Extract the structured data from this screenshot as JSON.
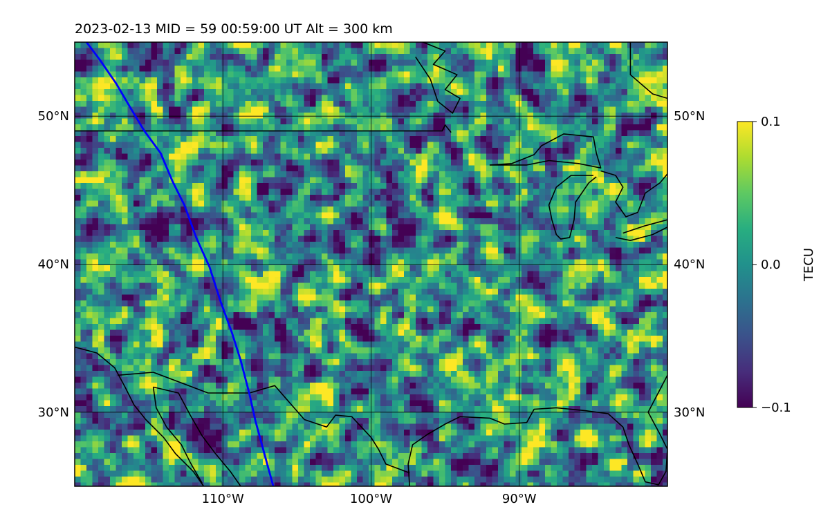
{
  "title": "2023-02-13  MID =  59    00:59:00  UT  Alt = 300 km",
  "map": {
    "projection": "plate-carree",
    "extent_lon": [
      -120,
      -80
    ],
    "extent_lat": [
      25,
      55
    ],
    "field": "TEC anomaly (dTEC)",
    "ocean_visible": false
  },
  "gridlines": {
    "lon_ticks": [
      {
        "value": -110,
        "label": "110°W"
      },
      {
        "value": -100,
        "label": "100°W"
      },
      {
        "value": -90,
        "label": "90°W"
      }
    ],
    "lat_ticks": [
      {
        "value": 50,
        "label": "50°N"
      },
      {
        "value": 40,
        "label": "40°N"
      },
      {
        "value": 30,
        "label": "30°N"
      }
    ]
  },
  "terminator_line": {
    "color": "#0000ff",
    "points": [
      [
        -119.2,
        55.0
      ],
      [
        -118.3,
        53.8
      ],
      [
        -117.2,
        52.2
      ],
      [
        -116.2,
        50.5
      ],
      [
        -115.3,
        49.0
      ],
      [
        -114.2,
        47.5
      ],
      [
        -113.4,
        45.6
      ],
      [
        -112.6,
        44.0
      ],
      [
        -111.8,
        41.8
      ],
      [
        -110.9,
        39.8
      ],
      [
        -110.2,
        37.6
      ],
      [
        -109.4,
        35.4
      ],
      [
        -108.8,
        33.5
      ],
      [
        -108.2,
        31.2
      ],
      [
        -107.8,
        29.4
      ],
      [
        -107.2,
        27.2
      ],
      [
        -106.6,
        25.0
      ]
    ]
  },
  "colorbar": {
    "label": "TECU",
    "vmin": -0.1,
    "vmax": 0.1,
    "colormap": "viridis",
    "ticks": [
      {
        "value": 0.1,
        "label": "0.1"
      },
      {
        "value": 0.0,
        "label": "0.0"
      },
      {
        "value": -0.1,
        "label": "−0.1"
      }
    ]
  },
  "colors": {
    "viridis": [
      "#440154",
      "#472d7b",
      "#3b528b",
      "#2c728e",
      "#21918c",
      "#28ae80",
      "#5ec962",
      "#addc30",
      "#fde725"
    ],
    "coastline": "#000000",
    "grid": "#000000"
  },
  "boundaries": {
    "us_canada_border": [
      [
        -120,
        49.0
      ],
      [
        -95.2,
        49.0
      ],
      [
        -95.0,
        49.4
      ],
      [
        -94.6,
        48.9
      ]
    ],
    "lake_superior_shore": [
      [
        -92.0,
        46.7
      ],
      [
        -90.5,
        46.8
      ],
      [
        -89.0,
        47.4
      ],
      [
        -88.5,
        48.0
      ],
      [
        -87.0,
        48.8
      ],
      [
        -85.0,
        48.6
      ],
      [
        -84.8,
        47.5
      ],
      [
        -84.5,
        46.5
      ],
      [
        -86.0,
        46.8
      ],
      [
        -88.0,
        47.0
      ],
      [
        -89.5,
        46.7
      ],
      [
        -92.0,
        46.7
      ]
    ],
    "lake_michigan_shore": [
      [
        -85.0,
        46.0
      ],
      [
        -86.5,
        46.0
      ],
      [
        -87.5,
        45.2
      ],
      [
        -88.0,
        44.0
      ],
      [
        -87.8,
        43.0
      ],
      [
        -87.5,
        42.0
      ],
      [
        -87.2,
        41.7
      ],
      [
        -86.6,
        41.8
      ],
      [
        -86.3,
        43.0
      ],
      [
        -86.2,
        44.2
      ],
      [
        -85.3,
        45.5
      ],
      [
        -84.8,
        45.9
      ]
    ],
    "lake_huron_shore": [
      [
        -84.5,
        46.3
      ],
      [
        -83.5,
        46.0
      ],
      [
        -83.0,
        45.2
      ],
      [
        -83.5,
        44.2
      ],
      [
        -82.8,
        43.2
      ],
      [
        -82.0,
        43.5
      ],
      [
        -81.5,
        44.8
      ],
      [
        -80.5,
        45.5
      ],
      [
        -80.0,
        46.1
      ]
    ],
    "lake_erie_shore": [
      [
        -83.5,
        41.8
      ],
      [
        -82.5,
        41.6
      ],
      [
        -81.0,
        42.0
      ],
      [
        -80.0,
        42.5
      ],
      [
        -80.0,
        43.0
      ],
      [
        -81.5,
        42.6
      ],
      [
        -83.0,
        42.1
      ]
    ],
    "hudson_bay_shore": [
      [
        -96.5,
        55.0
      ],
      [
        -95.0,
        54.4
      ],
      [
        -95.8,
        53.5
      ],
      [
        -94.2,
        52.8
      ],
      [
        -95.0,
        51.8
      ],
      [
        -94.0,
        51.2
      ],
      [
        -94.5,
        50.2
      ],
      [
        -95.5,
        51.0
      ],
      [
        -96.0,
        52.5
      ],
      [
        -97.0,
        54.0
      ]
    ],
    "canada_east": [
      [
        -82.5,
        55.0
      ],
      [
        -82.5,
        52.8
      ],
      [
        -81.0,
        51.5
      ],
      [
        -80.0,
        51.2
      ]
    ],
    "gulf_coast": [
      [
        -97.4,
        25.0
      ],
      [
        -97.5,
        26.5
      ],
      [
        -97.2,
        27.8
      ],
      [
        -96.2,
        28.5
      ],
      [
        -95.0,
        29.2
      ],
      [
        -94.0,
        29.7
      ],
      [
        -92.0,
        29.6
      ],
      [
        -91.0,
        29.2
      ],
      [
        -89.5,
        29.3
      ],
      [
        -89.0,
        30.2
      ],
      [
        -87.5,
        30.3
      ],
      [
        -85.5,
        30.1
      ],
      [
        -84.0,
        29.9
      ],
      [
        -83.0,
        29.0
      ],
      [
        -82.6,
        27.8
      ],
      [
        -82.0,
        26.5
      ],
      [
        -81.5,
        25.3
      ],
      [
        -80.6,
        25.1
      ],
      [
        -80.1,
        26.0
      ],
      [
        -80.0,
        27.5
      ],
      [
        -80.5,
        28.5
      ],
      [
        -81.3,
        30.0
      ],
      [
        -80.0,
        32.5
      ]
    ],
    "us_mexico_border": [
      [
        -117.1,
        32.5
      ],
      [
        -114.7,
        32.7
      ],
      [
        -111.0,
        31.3
      ],
      [
        -108.2,
        31.3
      ],
      [
        -106.5,
        31.8
      ],
      [
        -104.5,
        29.5
      ],
      [
        -103.0,
        29.0
      ],
      [
        -102.4,
        29.8
      ],
      [
        -101.3,
        29.7
      ],
      [
        -100.0,
        28.3
      ],
      [
        -99.5,
        27.5
      ],
      [
        -99.0,
        26.5
      ],
      [
        -97.4,
        25.9
      ]
    ],
    "mexico_pacific_coast": [
      [
        -120.0,
        34.4
      ],
      [
        -118.5,
        34.0
      ],
      [
        -117.3,
        33.0
      ],
      [
        -116.6,
        31.7
      ],
      [
        -116.0,
        30.5
      ],
      [
        -115.2,
        29.5
      ],
      [
        -114.0,
        28.3
      ],
      [
        -113.2,
        27.2
      ],
      [
        -112.0,
        26.0
      ],
      [
        -111.3,
        25.0
      ]
    ],
    "gulf_of_california_coast": [
      [
        -114.7,
        31.7
      ],
      [
        -113.0,
        31.3
      ],
      [
        -112.2,
        29.8
      ],
      [
        -111.4,
        28.4
      ],
      [
        -110.5,
        27.2
      ],
      [
        -109.5,
        26.0
      ],
      [
        -108.8,
        25.0
      ]
    ],
    "baja_peninsula_inner": [
      [
        -114.7,
        31.7
      ],
      [
        -114.5,
        30.3
      ],
      [
        -113.8,
        29.0
      ],
      [
        -112.8,
        27.8
      ],
      [
        -112.2,
        26.6
      ],
      [
        -111.4,
        25.2
      ]
    ]
  }
}
